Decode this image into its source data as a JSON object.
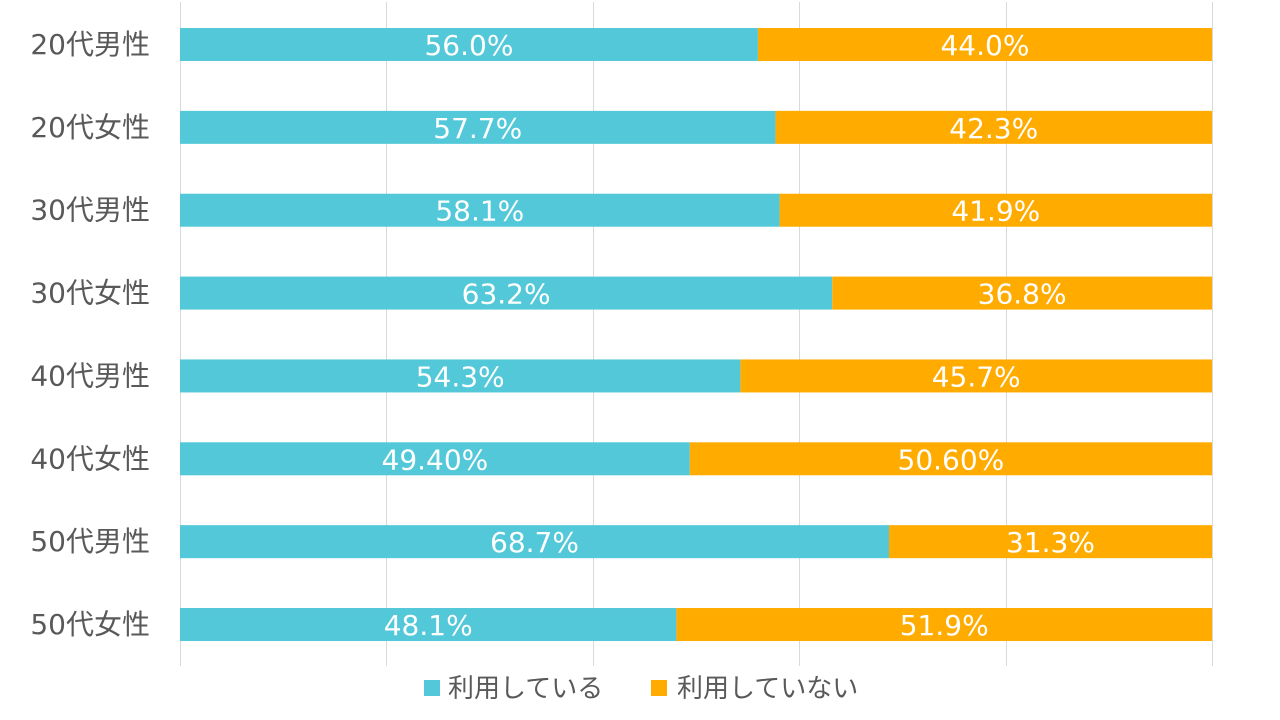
{
  "chart_data": {
    "type": "bar",
    "orientation": "horizontal",
    "stacked": "percent",
    "categories": [
      "20代男性",
      "20代女性",
      "30代男性",
      "30代女性",
      "40代男性",
      "40代女性",
      "50代男性",
      "50代女性"
    ],
    "series": [
      {
        "name": "利用している",
        "color": "#53c8d8",
        "values": [
          56.0,
          57.7,
          58.1,
          63.2,
          54.3,
          49.4,
          68.7,
          48.1
        ],
        "labels": [
          "56.0%",
          "57.7%",
          "58.1%",
          "63.2%",
          "54.3%",
          "49.40%",
          "68.7%",
          "48.1%"
        ]
      },
      {
        "name": "利用していない",
        "color": "#ffab00",
        "values": [
          44.0,
          42.3,
          41.9,
          36.8,
          45.7,
          50.6,
          31.3,
          51.9
        ],
        "labels": [
          "44.0%",
          "42.3%",
          "41.9%",
          "36.8%",
          "45.7%",
          "50.60%",
          "31.3%",
          "51.9%"
        ]
      }
    ],
    "xlim": [
      0,
      100
    ],
    "grid": true,
    "gridColor": "#d9d9d9",
    "legend": "bottom-center"
  }
}
